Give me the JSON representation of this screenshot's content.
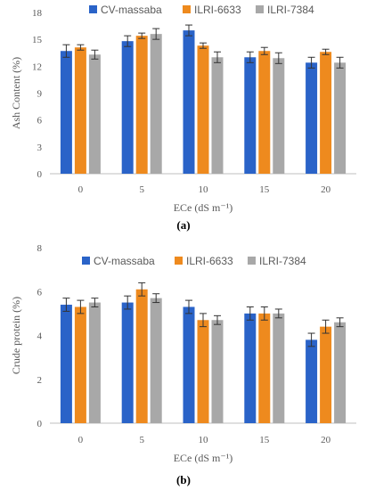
{
  "figure": {
    "panels": [
      {
        "caption": "(a)"
      },
      {
        "caption": "(b)"
      }
    ]
  },
  "colors": {
    "CV-massaba": "#2a63c8",
    "ILRI-6633": "#ee8a1e",
    "ILRI-7384": "#a8a8a8",
    "axis": "#bfbfbf",
    "text": "#595959"
  },
  "chart_data": [
    {
      "type": "bar",
      "title": "",
      "xlabel": "ECe (dS m⁻¹)",
      "ylabel": "Ash Content (%)",
      "categories": [
        "0",
        "5",
        "10",
        "15",
        "20"
      ],
      "ylim": [
        0,
        18
      ],
      "yticks": [
        "0",
        "3",
        "6",
        "9",
        "12",
        "15",
        "18"
      ],
      "grid": false,
      "legend": "top",
      "series": [
        {
          "name": "CV-massaba",
          "values": [
            13.7,
            14.8,
            16.0,
            13.0,
            12.4
          ],
          "errors": [
            0.7,
            0.6,
            0.6,
            0.6,
            0.6
          ]
        },
        {
          "name": "ILRI-6633",
          "values": [
            14.1,
            15.4,
            14.3,
            13.7,
            13.6
          ],
          "errors": [
            0.3,
            0.3,
            0.3,
            0.4,
            0.3
          ]
        },
        {
          "name": "ILRI-7384",
          "values": [
            13.3,
            15.6,
            13.0,
            12.9,
            12.4
          ],
          "errors": [
            0.5,
            0.6,
            0.6,
            0.6,
            0.6
          ]
        }
      ]
    },
    {
      "type": "bar",
      "title": "",
      "xlabel": "ECe (dS m⁻¹)",
      "ylabel": "Crude protein (%)",
      "categories": [
        "0",
        "5",
        "10",
        "15",
        "20"
      ],
      "ylim": [
        0,
        8
      ],
      "yticks": [
        "0",
        "2",
        "4",
        "6",
        "8"
      ],
      "grid": false,
      "legend": "top",
      "series": [
        {
          "name": "CV-massaba",
          "values": [
            5.4,
            5.5,
            5.3,
            5.0,
            3.8
          ],
          "errors": [
            0.3,
            0.3,
            0.3,
            0.3,
            0.3
          ]
        },
        {
          "name": "ILRI-6633",
          "values": [
            5.3,
            6.1,
            4.7,
            5.0,
            4.4
          ],
          "errors": [
            0.3,
            0.3,
            0.3,
            0.3,
            0.3
          ]
        },
        {
          "name": "ILRI-7384",
          "values": [
            5.5,
            5.7,
            4.7,
            5.0,
            4.6
          ],
          "errors": [
            0.2,
            0.2,
            0.2,
            0.2,
            0.2
          ]
        }
      ]
    }
  ]
}
